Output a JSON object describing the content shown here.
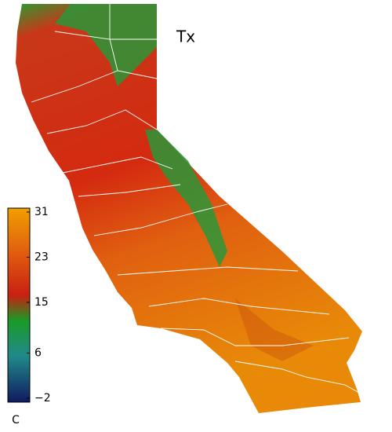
{
  "title": "Tx",
  "colorbar": {
    "lim": [
      -2,
      31
    ],
    "ticks": [
      {
        "value": -2,
        "label": "−2"
      },
      6,
      15,
      23,
      31
    ],
    "unit": "C"
  }
}
